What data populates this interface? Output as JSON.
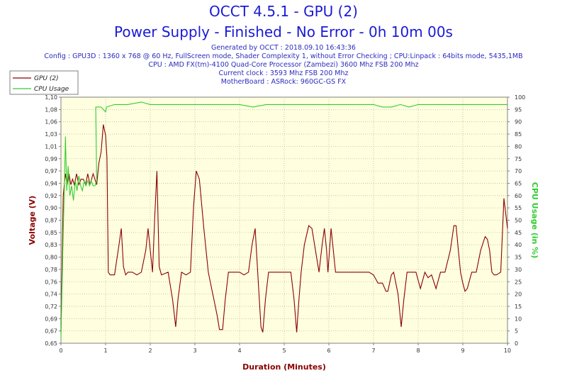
{
  "header": {
    "title": "OCCT 4.5.1 - GPU (2)",
    "subtitle": "Power Supply - Finished - No Error - 0h 10m 00s",
    "info": [
      "Generated by OCCT : 2018.09.10 16:43:36",
      "Config : GPU3D : 1360 x 768 @ 60 Hz, FullScreen mode, Shader Complexity 1, without Error Checking ; CPU:Linpack : 64bits mode, 5435,1MB",
      "CPU : AMD FX(tm)-4100 Quad-Core Processor (Zambezi) 3600 Mhz FSB 200 Mhz",
      "Current clock : 3593 Mhz FSB 200 Mhz",
      "MotherBoard : ASRock: 960GC-GS FX"
    ]
  },
  "colors": {
    "voltage": "#8b0000",
    "cpu": "#33cc33",
    "plot_bg": "#ffffe0",
    "title": "#1a1ad6"
  },
  "chart_data": {
    "type": "line",
    "xlabel": "Duration (Minutes)",
    "ylabel": "Voltage (V)",
    "y2label": "CPU Usage (in %)",
    "xlim": [
      0,
      10
    ],
    "ylim": [
      0.65,
      1.1
    ],
    "y2lim": [
      0,
      100
    ],
    "x_ticks": [
      "0",
      "1",
      "2",
      "3",
      "4",
      "5",
      "6",
      "7",
      "8",
      "9",
      "10"
    ],
    "y_ticks": [
      "0,65",
      "0,67",
      "0,69",
      "0,72",
      "0,74",
      "0,76",
      "0,78",
      "0,80",
      "0,83",
      "0,85",
      "0,87",
      "0,90",
      "0,92",
      "0,94",
      "0,97",
      "0,99",
      "1,01",
      "1,03",
      "1,06",
      "1,08",
      "1,10"
    ],
    "y2_ticks": [
      "0",
      "5",
      "10",
      "15",
      "20",
      "25",
      "30",
      "35",
      "40",
      "45",
      "50",
      "55",
      "60",
      "65",
      "70",
      "75",
      "80",
      "85",
      "90",
      "95",
      "100"
    ],
    "grid": true,
    "legend": "top-left",
    "series": [
      {
        "name": "GPU (2)",
        "axis": "left",
        "points": [
          [
            0,
            0.67
          ],
          [
            0.05,
            0.92
          ],
          [
            0.1,
            0.96
          ],
          [
            0.14,
            0.94
          ],
          [
            0.18,
            0.96
          ],
          [
            0.22,
            0.94
          ],
          [
            0.26,
            0.95
          ],
          [
            0.3,
            0.94
          ],
          [
            0.35,
            0.96
          ],
          [
            0.4,
            0.94
          ],
          [
            0.45,
            0.95
          ],
          [
            0.5,
            0.95
          ],
          [
            0.55,
            0.94
          ],
          [
            0.6,
            0.96
          ],
          [
            0.65,
            0.94
          ],
          [
            0.72,
            0.96
          ],
          [
            0.8,
            0.94
          ],
          [
            0.85,
            0.98
          ],
          [
            0.9,
            1.0
          ],
          [
            0.95,
            1.05
          ],
          [
            1.0,
            1.03
          ],
          [
            1.03,
            0.99
          ],
          [
            1.06,
            0.78
          ],
          [
            1.1,
            0.775
          ],
          [
            1.2,
            0.775
          ],
          [
            1.3,
            0.83
          ],
          [
            1.35,
            0.86
          ],
          [
            1.4,
            0.79
          ],
          [
            1.45,
            0.775
          ],
          [
            1.5,
            0.78
          ],
          [
            1.6,
            0.78
          ],
          [
            1.7,
            0.775
          ],
          [
            1.8,
            0.78
          ],
          [
            1.9,
            0.82
          ],
          [
            1.95,
            0.86
          ],
          [
            2.0,
            0.82
          ],
          [
            2.05,
            0.78
          ],
          [
            2.1,
            0.88
          ],
          [
            2.15,
            0.965
          ],
          [
            2.2,
            0.79
          ],
          [
            2.25,
            0.775
          ],
          [
            2.4,
            0.78
          ],
          [
            2.5,
            0.73
          ],
          [
            2.57,
            0.68
          ],
          [
            2.62,
            0.73
          ],
          [
            2.7,
            0.78
          ],
          [
            2.8,
            0.775
          ],
          [
            2.9,
            0.78
          ],
          [
            2.97,
            0.9
          ],
          [
            3.03,
            0.965
          ],
          [
            3.1,
            0.95
          ],
          [
            3.2,
            0.86
          ],
          [
            3.3,
            0.78
          ],
          [
            3.4,
            0.74
          ],
          [
            3.5,
            0.7
          ],
          [
            3.55,
            0.675
          ],
          [
            3.62,
            0.675
          ],
          [
            3.68,
            0.73
          ],
          [
            3.75,
            0.78
          ],
          [
            4.0,
            0.78
          ],
          [
            4.1,
            0.775
          ],
          [
            4.2,
            0.78
          ],
          [
            4.28,
            0.83
          ],
          [
            4.35,
            0.86
          ],
          [
            4.42,
            0.76
          ],
          [
            4.48,
            0.68
          ],
          [
            4.52,
            0.67
          ],
          [
            4.58,
            0.73
          ],
          [
            4.65,
            0.78
          ],
          [
            4.8,
            0.78
          ],
          [
            5.0,
            0.78
          ],
          [
            5.15,
            0.78
          ],
          [
            5.22,
            0.73
          ],
          [
            5.28,
            0.67
          ],
          [
            5.33,
            0.73
          ],
          [
            5.38,
            0.78
          ],
          [
            5.45,
            0.83
          ],
          [
            5.55,
            0.865
          ],
          [
            5.62,
            0.86
          ],
          [
            5.7,
            0.82
          ],
          [
            5.78,
            0.78
          ],
          [
            5.85,
            0.83
          ],
          [
            5.9,
            0.86
          ],
          [
            5.95,
            0.82
          ],
          [
            5.98,
            0.78
          ],
          [
            6.05,
            0.86
          ],
          [
            6.1,
            0.82
          ],
          [
            6.15,
            0.78
          ],
          [
            6.4,
            0.78
          ],
          [
            6.6,
            0.78
          ],
          [
            6.9,
            0.78
          ],
          [
            7.0,
            0.775
          ],
          [
            7.1,
            0.76
          ],
          [
            7.2,
            0.76
          ],
          [
            7.28,
            0.745
          ],
          [
            7.32,
            0.745
          ],
          [
            7.4,
            0.775
          ],
          [
            7.45,
            0.78
          ],
          [
            7.55,
            0.74
          ],
          [
            7.62,
            0.68
          ],
          [
            7.68,
            0.73
          ],
          [
            7.75,
            0.78
          ],
          [
            7.85,
            0.78
          ],
          [
            7.95,
            0.78
          ],
          [
            8.05,
            0.75
          ],
          [
            8.15,
            0.78
          ],
          [
            8.22,
            0.77
          ],
          [
            8.3,
            0.775
          ],
          [
            8.4,
            0.75
          ],
          [
            8.5,
            0.78
          ],
          [
            8.6,
            0.78
          ],
          [
            8.72,
            0.82
          ],
          [
            8.8,
            0.865
          ],
          [
            8.85,
            0.865
          ],
          [
            8.9,
            0.82
          ],
          [
            8.95,
            0.78
          ],
          [
            9.0,
            0.76
          ],
          [
            9.05,
            0.745
          ],
          [
            9.1,
            0.75
          ],
          [
            9.2,
            0.78
          ],
          [
            9.3,
            0.78
          ],
          [
            9.4,
            0.82
          ],
          [
            9.5,
            0.845
          ],
          [
            9.55,
            0.84
          ],
          [
            9.6,
            0.82
          ],
          [
            9.65,
            0.78
          ],
          [
            9.7,
            0.775
          ],
          [
            9.75,
            0.775
          ],
          [
            9.85,
            0.78
          ],
          [
            9.92,
            0.915
          ],
          [
            10.0,
            0.86
          ]
        ]
      },
      {
        "name": "CPU Usage",
        "axis": "right",
        "points": [
          [
            0,
            2
          ],
          [
            0.05,
            45
          ],
          [
            0.08,
            65
          ],
          [
            0.1,
            84
          ],
          [
            0.13,
            62
          ],
          [
            0.16,
            72
          ],
          [
            0.2,
            60
          ],
          [
            0.24,
            64
          ],
          [
            0.28,
            58
          ],
          [
            0.32,
            66
          ],
          [
            0.36,
            62
          ],
          [
            0.4,
            68
          ],
          [
            0.44,
            64
          ],
          [
            0.48,
            62
          ],
          [
            0.52,
            66
          ],
          [
            0.56,
            64
          ],
          [
            0.6,
            66
          ],
          [
            0.64,
            64
          ],
          [
            0.68,
            66
          ],
          [
            0.72,
            64
          ],
          [
            0.76,
            64
          ],
          [
            0.8,
            66
          ],
          [
            0.78,
            96
          ],
          [
            0.9,
            96
          ],
          [
            1.0,
            94
          ],
          [
            1.02,
            96
          ],
          [
            1.2,
            97
          ],
          [
            1.5,
            97
          ],
          [
            1.8,
            98
          ],
          [
            2.0,
            97
          ],
          [
            2.3,
            97
          ],
          [
            2.6,
            97
          ],
          [
            3.0,
            97
          ],
          [
            3.3,
            97
          ],
          [
            3.6,
            97
          ],
          [
            4.0,
            97
          ],
          [
            4.3,
            96
          ],
          [
            4.6,
            97
          ],
          [
            5.0,
            97
          ],
          [
            5.3,
            97
          ],
          [
            5.6,
            97
          ],
          [
            6.0,
            97
          ],
          [
            6.3,
            97
          ],
          [
            6.6,
            97
          ],
          [
            7.0,
            97
          ],
          [
            7.2,
            96
          ],
          [
            7.4,
            96
          ],
          [
            7.6,
            97
          ],
          [
            7.8,
            96
          ],
          [
            8.0,
            97
          ],
          [
            8.3,
            97
          ],
          [
            8.6,
            97
          ],
          [
            8.9,
            97
          ],
          [
            9.2,
            97
          ],
          [
            9.5,
            97
          ],
          [
            9.8,
            97
          ],
          [
            10.0,
            97
          ]
        ]
      }
    ]
  }
}
